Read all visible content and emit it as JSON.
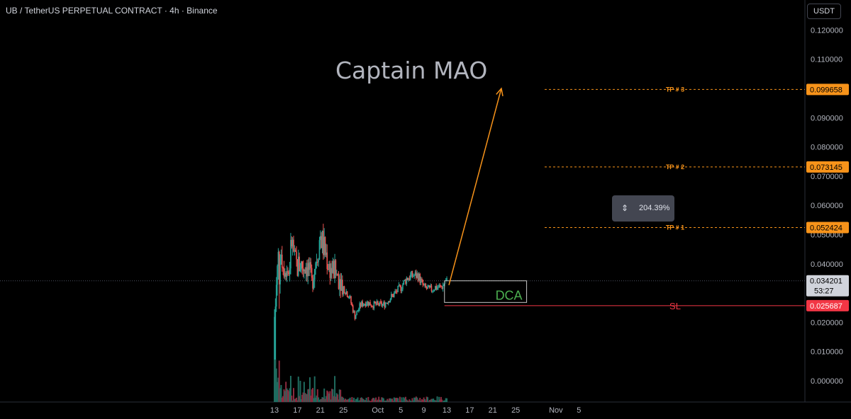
{
  "header": {
    "title": "UB / TetherUS PERPETUAL CONTRACT · 4h · Binance"
  },
  "currency": "USDT",
  "watermark": "Captain MAO",
  "measure": {
    "icon": "vertical-range-icon",
    "value": "204.39%"
  },
  "colors": {
    "up": "#26a69a",
    "down": "#ef5350",
    "orange": "#f7931a",
    "dca": "#4caf50",
    "sl": "#f23645",
    "bg": "#000000"
  },
  "chart_data": {
    "type": "candlestick",
    "title": "UB / TetherUS PERPETUAL CONTRACT · 4h · Binance",
    "ylim": [
      -0.006,
      0.125
    ],
    "y_ticks": [
      "0.120000",
      "0.110000",
      "0.100000",
      "0.090000",
      "0.080000",
      "0.070000",
      "0.060000",
      "0.050000",
      "0.040000",
      "0.030000",
      "0.020000",
      "0.010000",
      "0.000000"
    ],
    "y_tick_values": [
      0.12,
      0.11,
      0.1,
      0.09,
      0.08,
      0.07,
      0.06,
      0.05,
      0.04,
      0.03,
      0.02,
      0.01,
      0.0
    ],
    "x_ticks": [
      "13",
      "17",
      "21",
      "25",
      "Oct",
      "5",
      "9",
      "13",
      "17",
      "21",
      "25",
      "Nov",
      "5"
    ],
    "x_tick_days": [
      0,
      4,
      8,
      12,
      18,
      22,
      26,
      30,
      34,
      38,
      42,
      49,
      53
    ],
    "price_series": {
      "days": [
        0,
        0.3,
        0.6,
        1,
        1.5,
        2,
        2.5,
        3,
        3.5,
        4,
        4.5,
        5,
        5.5,
        6,
        6.5,
        7,
        7.5,
        8,
        8.5,
        9,
        9.5,
        10,
        10.5,
        11,
        11.5,
        12,
        13,
        14,
        15,
        16,
        17,
        18,
        19,
        20,
        21,
        22,
        23,
        24,
        25,
        26,
        27,
        28,
        29,
        30
      ],
      "values": [
        0.022,
        0.03,
        0.038,
        0.046,
        0.04,
        0.039,
        0.037,
        0.048,
        0.041,
        0.039,
        0.04,
        0.039,
        0.04,
        0.038,
        0.033,
        0.04,
        0.044,
        0.05,
        0.046,
        0.043,
        0.039,
        0.038,
        0.037,
        0.036,
        0.035,
        0.032,
        0.029,
        0.022,
        0.026,
        0.027,
        0.026,
        0.026,
        0.026,
        0.028,
        0.03,
        0.032,
        0.035,
        0.036,
        0.036,
        0.032,
        0.031,
        0.032,
        0.032,
        0.034
      ]
    },
    "price_levels": [
      {
        "label": "TP # 3",
        "value": 0.099658,
        "text": "0.099658"
      },
      {
        "label": "TP # 2",
        "value": 0.073145,
        "text": "0.073145"
      },
      {
        "label": "TP # 1",
        "value": 0.052424,
        "text": "0.052424"
      },
      {
        "label": "SL",
        "value": 0.025687,
        "text": "0.025687"
      }
    ],
    "last_price": {
      "text": "0.034201",
      "value": 0.034201,
      "countdown": "53:27"
    },
    "dca_zone": {
      "label": "DCA",
      "top": 0.034201,
      "bottom": 0.0268,
      "start_day": 29.6,
      "end_day": 43.9
    },
    "projection": {
      "from_day": 30,
      "from_value": 0.032,
      "to_day": 39.5,
      "to_value": 0.1
    }
  }
}
